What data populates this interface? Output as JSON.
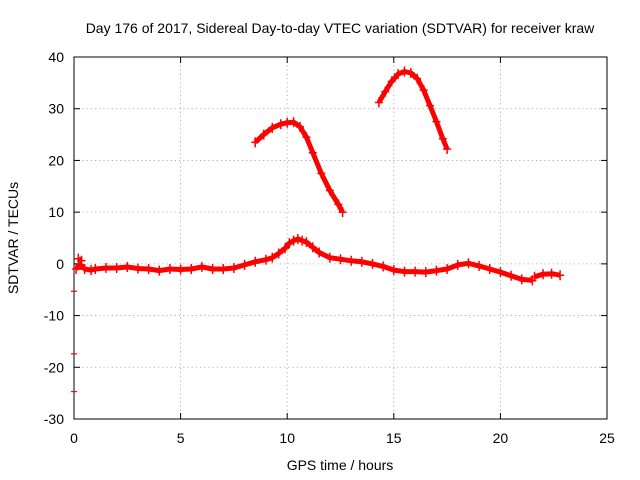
{
  "chart_data": {
    "type": "line",
    "title": "Day 176 of 2017, Sidereal Day-to-day VTEC variation (SDTVAR) for receiver kraw",
    "xlabel": "GPS time / hours",
    "ylabel": "SDTVAR / TECUs",
    "xlim": [
      0,
      25
    ],
    "ylim": [
      -30,
      40
    ],
    "grid": true,
    "x_ticks": [
      0,
      5,
      10,
      15,
      20,
      25
    ],
    "y_ticks": [
      -30,
      -20,
      -10,
      0,
      10,
      20,
      30,
      40
    ],
    "x_tick_labels": [
      "0",
      "5",
      "10",
      "15",
      "20",
      "25"
    ],
    "y_tick_labels": [
      "-30",
      "-20",
      "-10",
      "0",
      "10",
      "20",
      "30",
      "40"
    ],
    "series_color": "#ff0000",
    "series": [
      {
        "name": "main",
        "x": [
          0.1,
          0.3,
          0.5,
          0.8,
          1.0,
          1.5,
          2.0,
          2.5,
          3.0,
          3.5,
          4.0,
          4.5,
          5.0,
          5.5,
          6.0,
          6.5,
          7.0,
          7.5,
          8.0,
          8.5,
          9.0,
          9.3,
          9.6,
          9.9,
          10.1,
          10.3,
          10.5,
          10.7,
          10.9,
          11.2,
          11.5,
          12.0,
          12.5,
          13.0,
          13.5,
          14.0,
          14.5,
          15.0,
          15.5,
          16.0,
          16.5,
          17.0,
          17.5,
          18.0,
          18.5,
          19.0,
          19.5,
          20.0,
          20.5,
          21.0,
          21.5
        ],
        "y": [
          -1.0,
          -0.2,
          -1.0,
          -1.2,
          -1.0,
          -0.8,
          -0.8,
          -0.6,
          -0.9,
          -1.0,
          -1.3,
          -1.0,
          -1.1,
          -1.0,
          -0.6,
          -1.0,
          -1.0,
          -0.8,
          -0.2,
          0.4,
          0.8,
          1.2,
          2.0,
          3.0,
          4.0,
          4.5,
          4.8,
          4.5,
          4.2,
          3.2,
          2.2,
          1.2,
          0.9,
          0.6,
          0.4,
          0.0,
          -0.5,
          -1.2,
          -1.5,
          -1.5,
          -1.6,
          -1.3,
          -1.0,
          -0.2,
          0.1,
          -0.4,
          -1.0,
          -1.6,
          -2.3,
          -3.0,
          -3.2
        ]
      },
      {
        "name": "end-segment",
        "x": [
          21.6,
          22.0,
          22.4,
          22.8
        ],
        "y": [
          -2.5,
          -2.0,
          -1.9,
          -2.2
        ]
      },
      {
        "name": "start-blip",
        "x": [
          0.2,
          0.35
        ],
        "y": [
          1.0,
          0.6
        ]
      },
      {
        "name": "arc-1",
        "x": [
          8.5,
          8.9,
          9.3,
          9.7,
          10.0,
          10.3,
          10.6,
          10.9,
          11.2,
          11.6,
          12.0,
          12.4,
          12.6
        ],
        "y": [
          23.5,
          25.0,
          26.3,
          27.0,
          27.3,
          27.4,
          26.5,
          24.5,
          21.5,
          17.5,
          14.2,
          11.5,
          10.0
        ]
      },
      {
        "name": "arc-2",
        "x": [
          14.3,
          14.6,
          14.9,
          15.2,
          15.5,
          15.8,
          16.1,
          16.4,
          16.7,
          17.0,
          17.3,
          17.5
        ],
        "y": [
          31.2,
          33.3,
          35.3,
          36.7,
          37.2,
          36.9,
          35.8,
          33.6,
          30.6,
          27.5,
          24.2,
          22.2
        ]
      },
      {
        "name": "outliers",
        "type": "scatter",
        "x": [
          0.0,
          0.0,
          0.0
        ],
        "y": [
          -5.3,
          -17.4,
          -24.7
        ]
      }
    ]
  }
}
